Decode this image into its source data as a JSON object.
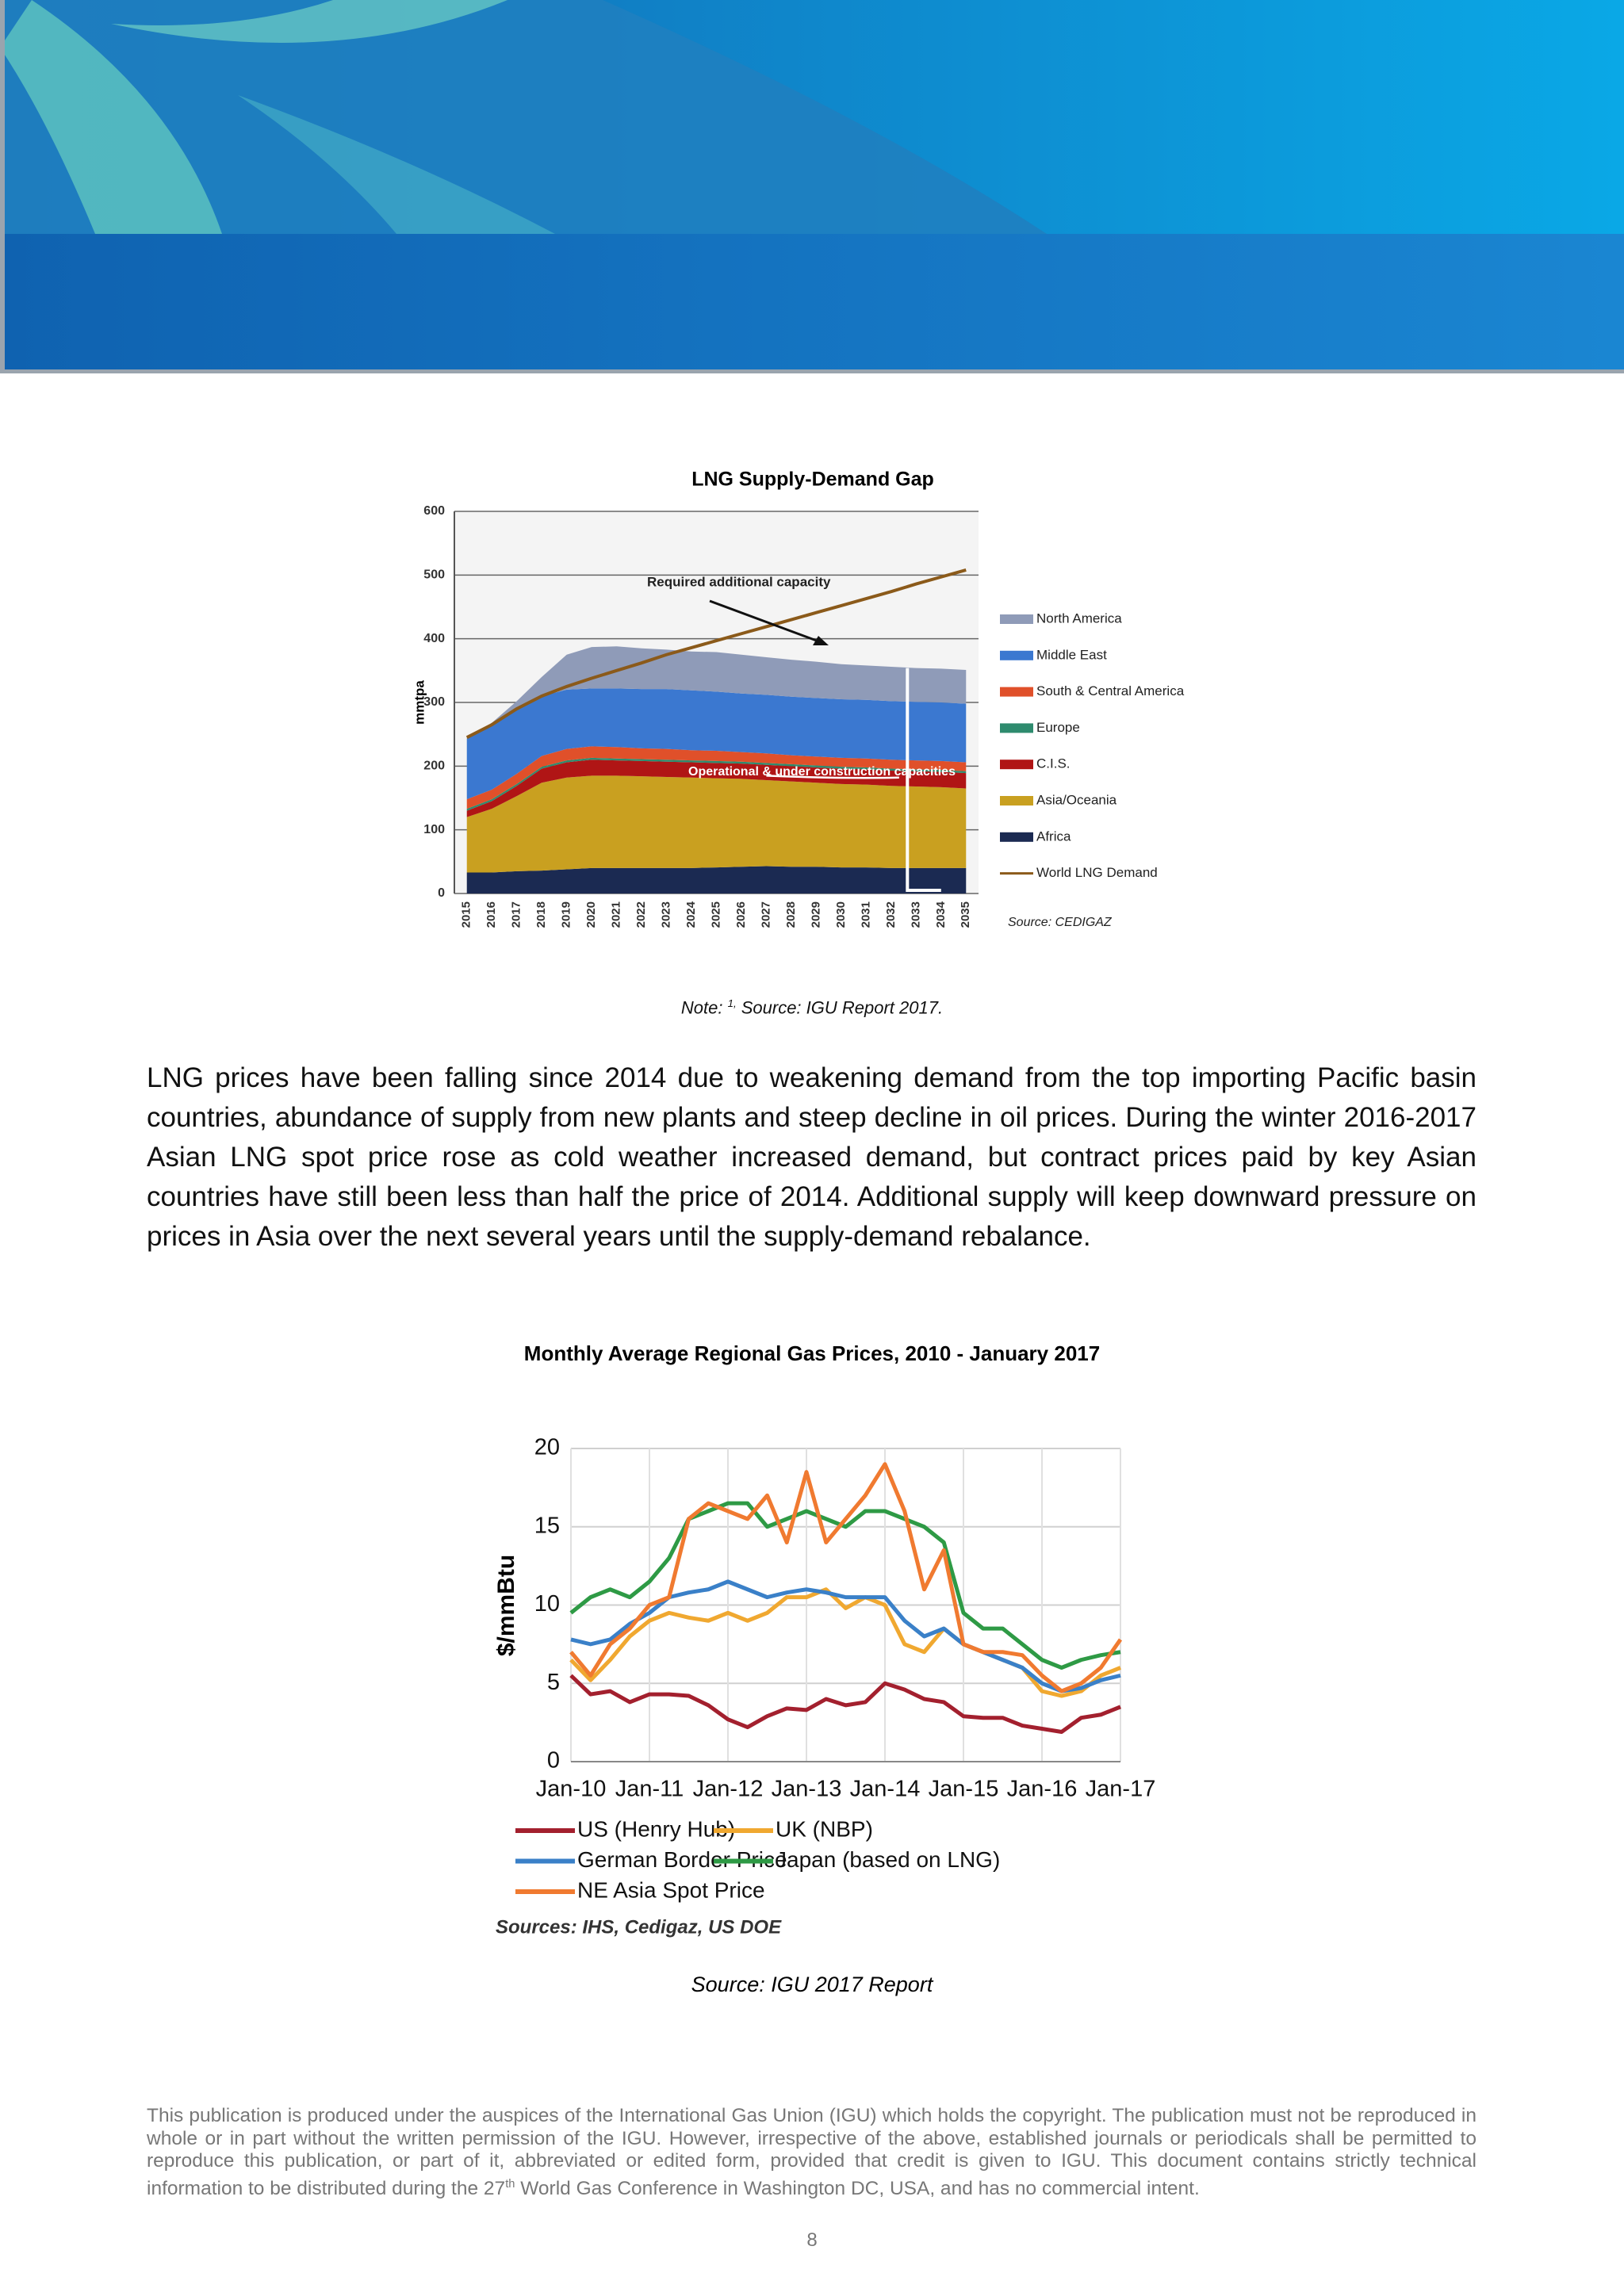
{
  "chart_data": [
    {
      "type": "area",
      "title": "LNG Supply-Demand Gap",
      "y_label": "mmtpa",
      "stacked": true,
      "grid": true,
      "legend": "right",
      "categories": [
        "2015",
        "2016",
        "2017",
        "2018",
        "2019",
        "2020",
        "2021",
        "2022",
        "2023",
        "2024",
        "2025",
        "2026",
        "2027",
        "2028",
        "2029",
        "2030",
        "2031",
        "2032",
        "2033",
        "2034",
        "2035"
      ],
      "ylim": [
        0,
        600
      ],
      "yticks": [
        0,
        100,
        200,
        300,
        400,
        500,
        600
      ],
      "series": [
        {
          "name": "Africa",
          "type": "area",
          "color": "#1b2a52",
          "values": [
            33,
            33,
            35,
            36,
            38,
            40,
            40,
            40,
            40,
            40,
            41,
            42,
            43,
            42,
            42,
            41,
            41,
            40,
            40,
            40,
            40
          ]
        },
        {
          "name": "Asia/Oceania",
          "type": "area",
          "color": "#c9a020",
          "values": [
            87,
            100,
            118,
            138,
            144,
            145,
            145,
            144,
            143,
            142,
            140,
            138,
            135,
            134,
            132,
            131,
            130,
            129,
            128,
            127,
            125
          ]
        },
        {
          "name": "C.I.S.",
          "type": "area",
          "color": "#b01515",
          "values": [
            10,
            12,
            16,
            22,
            24,
            25,
            24,
            24,
            24,
            24,
            24,
            24,
            24,
            24,
            24,
            24,
            24,
            24,
            24,
            24,
            24
          ]
        },
        {
          "name": "Europe",
          "type": "area",
          "color": "#2e8b6e",
          "values": [
            3,
            3,
            3,
            3,
            3,
            3,
            3,
            3,
            3,
            3,
            3,
            3,
            3,
            3,
            3,
            3,
            3,
            3,
            3,
            3,
            3
          ]
        },
        {
          "name": "South & Central America",
          "type": "area",
          "color": "#e0502a",
          "values": [
            15,
            15,
            16,
            17,
            18,
            18,
            18,
            17,
            17,
            16,
            16,
            15,
            15,
            14,
            14,
            14,
            14,
            14,
            14,
            14,
            14
          ]
        },
        {
          "name": "Middle East",
          "type": "area",
          "color": "#3b78d0",
          "values": [
            95,
            100,
            102,
            94,
            93,
            91,
            92,
            93,
            94,
            94,
            93,
            92,
            92,
            92,
            92,
            92,
            92,
            92,
            92,
            92,
            92
          ]
        },
        {
          "name": "North America",
          "type": "area",
          "color": "#8f9bb8",
          "values": [
            2,
            5,
            12,
            30,
            55,
            65,
            66,
            64,
            62,
            61,
            62,
            61,
            59,
            58,
            57,
            55,
            54,
            54,
            53,
            53,
            53
          ]
        },
        {
          "name": "World LNG Demand",
          "type": "line",
          "color": "#8b5a1a",
          "values": [
            245,
            265,
            290,
            310,
            325,
            338,
            350,
            362,
            375,
            386,
            397,
            408,
            419,
            430,
            441,
            452,
            463,
            474,
            486,
            497,
            508
          ]
        }
      ],
      "annotations": [
        "Required additional capacity",
        "Operational & under construction capacities"
      ],
      "source": "Source: CEDIGAZ"
    },
    {
      "type": "line",
      "title": "Monthly Average Regional Gas Prices, 2010 - January 2017",
      "y_label": "$/mmBtu",
      "grid": true,
      "legend": "bottom",
      "xlim": [
        2010,
        2017
      ],
      "xticks": [
        {
          "value": 2010,
          "label": "Jan-10"
        },
        {
          "value": 2011,
          "label": "Jan-11"
        },
        {
          "value": 2012,
          "label": "Jan-12"
        },
        {
          "value": 2013,
          "label": "Jan-13"
        },
        {
          "value": 2014,
          "label": "Jan-14"
        },
        {
          "value": 2015,
          "label": "Jan-15"
        },
        {
          "value": 2016,
          "label": "Jan-16"
        },
        {
          "value": 2017,
          "label": "Jan-17"
        }
      ],
      "ylim": [
        0,
        20
      ],
      "yticks": [
        0,
        5,
        10,
        15,
        20
      ],
      "x": [
        2010,
        2010.25,
        2010.5,
        2010.75,
        2011,
        2011.25,
        2011.5,
        2011.75,
        2012,
        2012.25,
        2012.5,
        2012.75,
        2013,
        2013.25,
        2013.5,
        2013.75,
        2014,
        2014.25,
        2014.5,
        2014.75,
        2015,
        2015.25,
        2015.5,
        2015.75,
        2016,
        2016.25,
        2016.5,
        2016.75,
        2017
      ],
      "series": [
        {
          "name": "US (Henry Hub)",
          "color": "#a3202e",
          "values": [
            5.5,
            4.3,
            4.5,
            3.8,
            4.3,
            4.3,
            4.2,
            3.6,
            2.7,
            2.2,
            2.9,
            3.4,
            3.3,
            4.0,
            3.6,
            3.8,
            5.0,
            4.6,
            4.0,
            3.8,
            2.9,
            2.8,
            2.8,
            2.3,
            2.1,
            1.9,
            2.8,
            3.0,
            3.5
          ]
        },
        {
          "name": "UK (NBP)",
          "color": "#f0a830",
          "values": [
            6.5,
            5.2,
            6.5,
            8.0,
            9.0,
            9.5,
            9.2,
            9.0,
            9.5,
            9.0,
            9.5,
            10.5,
            10.5,
            11.0,
            9.8,
            10.5,
            10.0,
            7.5,
            7.0,
            8.5,
            7.5,
            7.0,
            6.5,
            6.0,
            4.5,
            4.2,
            4.5,
            5.5,
            6.0
          ]
        },
        {
          "name": "German Border Price",
          "color": "#3a80c8",
          "values": [
            7.8,
            7.5,
            7.8,
            8.8,
            9.5,
            10.5,
            10.8,
            11.0,
            11.5,
            11.0,
            10.5,
            10.8,
            11.0,
            10.8,
            10.5,
            10.5,
            10.5,
            9.0,
            8.0,
            8.5,
            7.5,
            7.0,
            6.5,
            6.0,
            5.0,
            4.5,
            4.7,
            5.2,
            5.5
          ]
        },
        {
          "name": "Japan (based on LNG)",
          "color": "#2e9a45",
          "values": [
            9.5,
            10.5,
            11,
            10.5,
            11.5,
            13,
            15.5,
            16,
            16.5,
            16.5,
            15,
            15.5,
            16.0,
            15.5,
            15.0,
            16.0,
            16.0,
            15.5,
            15.0,
            14.0,
            9.5,
            8.5,
            8.5,
            7.5,
            6.5,
            6.0,
            6.5,
            6.8,
            7.0
          ]
        },
        {
          "name": "NE Asia Spot Price",
          "color": "#f07a30",
          "values": [
            7,
            5.5,
            7.5,
            8.5,
            10,
            10.5,
            15.5,
            16.5,
            16,
            15.5,
            17,
            14,
            18.5,
            14,
            15.5,
            17,
            19,
            16,
            11,
            13.5,
            7.5,
            7.0,
            7.0,
            6.8,
            5.5,
            4.5,
            5.0,
            6.0,
            7.8
          ]
        }
      ],
      "source": "Sources: IHS, Cedigaz, US DOE"
    }
  ],
  "note": {
    "prefix": "Note: ",
    "sup": "1,",
    "text": " Source: IGU Report 2017."
  },
  "paragraph": "LNG prices have been falling since 2014 due to weakening demand from the top importing Pacific basin countries, abundance of supply from new plants and steep decline in oil prices. During the winter 2016-2017 Asian LNG spot price rose as cold weather increased demand, but contract prices paid by key Asian countries have still been less than half the price of 2014. Additional supply will keep downward pressure on prices in Asia over the next several years until the supply-demand rebalance.",
  "chart2_source": "Source: IGU 2017 Report",
  "footer": {
    "before": "This publication is produced under the auspices of the International Gas Union (IGU) which holds the copyright. The publication must not be reproduced in whole or in part without the written permission of the IGU. However, irrespective of the above, established journals or periodicals shall be permitted to reproduce this publication, or part of it, abbreviated or edited form, provided that credit is given to IGU. This document contains strictly technical information to be distributed during the 27",
    "sup": "th",
    "after": " World Gas Conference in Washington DC, USA, and has no commercial intent."
  },
  "page_number": "8"
}
